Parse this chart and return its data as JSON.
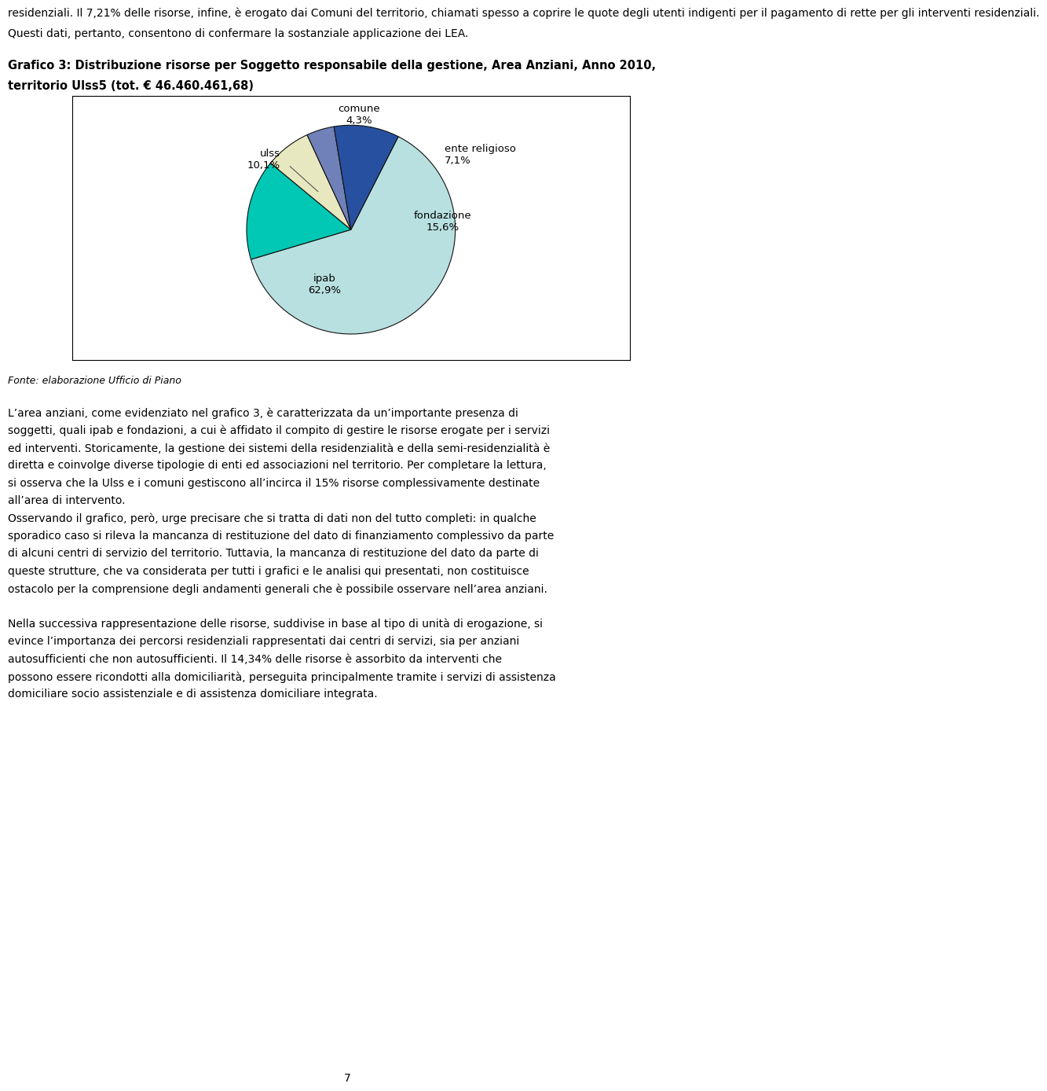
{
  "slices": [
    {
      "label": "ipab",
      "pct": 62.9,
      "color": "#b8e0e0"
    },
    {
      "label": "fondazione",
      "pct": 15.6,
      "color": "#00c8b4"
    },
    {
      "label": "ente religioso",
      "pct": 7.1,
      "color": "#e8e8c0"
    },
    {
      "label": "comune",
      "pct": 4.3,
      "color": "#7080b8"
    },
    {
      "label": "ulss",
      "pct": 10.1,
      "color": "#2850a0"
    }
  ],
  "fig_width": 9.6,
  "fig_height": 14.44,
  "background_color": "#ffffff",
  "border_color": "#000000",
  "label_fontsize": 9.5,
  "title_fontsize": 10.5,
  "startangle": 63,
  "title_line1": "Grafico 3: Distribuzione risorse per Soggetto responsabile della gestione, Area Anziani, Anno 2010,",
  "title_line2": "territorio Ulss5 (tot. € 46.460.461,68)",
  "fonte": "Fonte: elaborazione Ufficio di Piano",
  "body_text": [
    "L’area anziani, come evidenziato nel grafico 3, è caratterizzata da un’importante presenza di soggetti, quali ipab e fondazioni, a cui è affidato il compito di gestire le risorse erogate per i servizi ed interventi. Storicamente, la gestione dei sistemi della residenzialità e della semi-residenzialità è diretta e coinvolge diverse tipologie di enti ed associazioni nel territorio. Per completare la lettura, si osserva che la Ulss e i comuni gestiscono all’incirca il 15% risorse complessivamente destinate all’area di intervento.",
    "Osservando il grafico, però, urge precisare che si tratta di dati non del tutto completi: in qualche sporadico caso si rileva la mancanza di restituzione del dato di finanziamento complessivo da parte di alcuni centri di servizio del territorio. Tuttavia, la mancanza di restituzione del dato da parte di queste strutture, che va considerata per tutti i grafici e le analisi qui presentati, non costituisce ostacolo per la comprensione degli andamenti generali che è possibile osservare nell’area anziani.",
    "",
    "",
    "Nella successiva rappresentazione delle risorse, suddivise in base al tipo di unità di erogazione, si evince l’importanza dei percorsi residenziali rappresentati dai centri di servizi, sia per anziani autosufficienti che non autosufficienti. Il 14,34% delle risorse è assorbito da interventi che possono essere ricondotti alla domiciliarità, perseguita principalmente tramite i servizi di assistenza domiciliare socio assistenziale e di assistenza domiciliare integrata."
  ],
  "header_text": [
    "residenziali. Il 7,21% delle risorse, infine, è erogato dai Comuni del territorio, chiamati spesso a coprire le quote degli utenti indigenti per il pagamento di rette per gli interventi residenziali.",
    "Questi dati, pertanto, consentono di confermare la sostanziale applicazione dei LEA."
  ],
  "page_number": "7"
}
